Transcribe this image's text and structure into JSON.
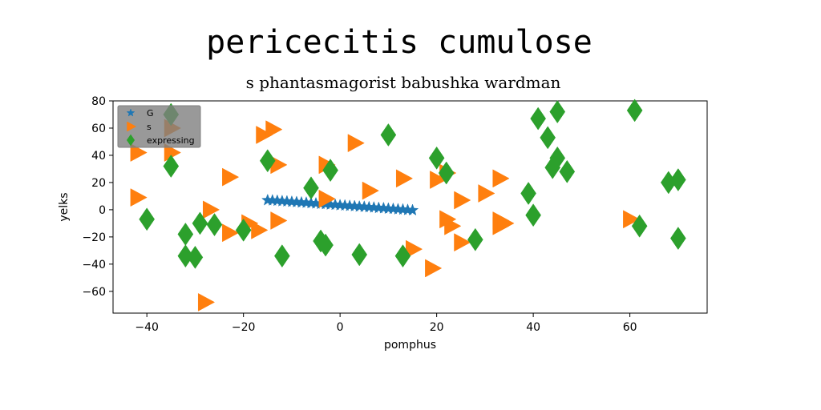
{
  "chart_data": {
    "type": "scatter",
    "title": "pericecitis cumulose",
    "subtitle": "s phantasmagorist babushka wardman",
    "xlabel": "pomphus",
    "ylabel": "yelks",
    "xlim": [
      -47,
      76
    ],
    "ylim": [
      -76,
      80
    ],
    "xticks": [
      -40,
      -20,
      0,
      20,
      40,
      60
    ],
    "yticks": [
      -60,
      -40,
      -20,
      0,
      20,
      40,
      60,
      80
    ],
    "xtick_labels": [
      "−40",
      "−20",
      "0",
      "20",
      "40",
      "60"
    ],
    "ytick_labels": [
      "−60",
      "−40",
      "−20",
      "0",
      "20",
      "40",
      "60",
      "80"
    ],
    "grid": false,
    "legend_position": "top-left",
    "series": [
      {
        "name": "G",
        "marker": "star",
        "color": "#1f77b4",
        "points": [
          [
            -15,
            7
          ],
          [
            -14,
            6.8
          ],
          [
            -13,
            6.6
          ],
          [
            -12,
            6.3
          ],
          [
            -11,
            6.1
          ],
          [
            -10,
            5.8
          ],
          [
            -9,
            5.6
          ],
          [
            -8,
            5.3
          ],
          [
            -7,
            5.1
          ],
          [
            -6,
            4.8
          ],
          [
            -5,
            4.6
          ],
          [
            -4,
            4.3
          ],
          [
            -3,
            4.1
          ],
          [
            -2,
            3.8
          ],
          [
            -1,
            3.6
          ],
          [
            0,
            3.3
          ],
          [
            1,
            3.1
          ],
          [
            2,
            2.8
          ],
          [
            3,
            2.6
          ],
          [
            4,
            2.3
          ],
          [
            5,
            2.1
          ],
          [
            6,
            1.8
          ],
          [
            7,
            1.6
          ],
          [
            8,
            1.3
          ],
          [
            9,
            1.1
          ],
          [
            10,
            0.8
          ],
          [
            11,
            0.6
          ],
          [
            12,
            0.3
          ],
          [
            13,
            0.1
          ],
          [
            14,
            -0.2
          ],
          [
            15,
            -0.4
          ]
        ]
      },
      {
        "name": "s",
        "marker": "triangle-right",
        "color": "#ff7f0e",
        "points": [
          [
            -42,
            42
          ],
          [
            -42,
            9
          ],
          [
            -35,
            42
          ],
          [
            -35,
            60
          ],
          [
            -27,
            0
          ],
          [
            -28,
            -68
          ],
          [
            -23,
            24
          ],
          [
            -23,
            -17
          ],
          [
            -19,
            -10
          ],
          [
            -17,
            -15
          ],
          [
            -16,
            55
          ],
          [
            -14,
            59
          ],
          [
            -13,
            33
          ],
          [
            -13,
            -8
          ],
          [
            -3,
            33
          ],
          [
            -3,
            8
          ],
          [
            3,
            49
          ],
          [
            6,
            14
          ],
          [
            13,
            23
          ],
          [
            15,
            -29
          ],
          [
            19,
            -43
          ],
          [
            20,
            22
          ],
          [
            22,
            -7
          ],
          [
            23,
            -12
          ],
          [
            22,
            27
          ],
          [
            25,
            7
          ],
          [
            25,
            -24
          ],
          [
            30,
            12
          ],
          [
            33,
            23
          ],
          [
            33,
            -8
          ],
          [
            33,
            -12
          ],
          [
            34,
            -10
          ],
          [
            60,
            -7
          ]
        ]
      },
      {
        "name": "expressing",
        "marker": "diamond",
        "color": "#2ca02c",
        "points": [
          [
            -40,
            -7
          ],
          [
            -35,
            70
          ],
          [
            -35,
            32
          ],
          [
            -32,
            -18
          ],
          [
            -32,
            -34
          ],
          [
            -30,
            -35
          ],
          [
            -29,
            -10
          ],
          [
            -26,
            -11
          ],
          [
            -20,
            -15
          ],
          [
            -15,
            36
          ],
          [
            -12,
            -34
          ],
          [
            -6,
            16
          ],
          [
            -4,
            -23
          ],
          [
            -3,
            -26
          ],
          [
            -2,
            29
          ],
          [
            4,
            -33
          ],
          [
            10,
            55
          ],
          [
            13,
            -34
          ],
          [
            20,
            38
          ],
          [
            22,
            27
          ],
          [
            28,
            -22
          ],
          [
            39,
            12
          ],
          [
            40,
            -4
          ],
          [
            41,
            67
          ],
          [
            43,
            53
          ],
          [
            44,
            31
          ],
          [
            45,
            72
          ],
          [
            45,
            38
          ],
          [
            47,
            28
          ],
          [
            61,
            73
          ],
          [
            62,
            -12
          ],
          [
            68,
            20
          ],
          [
            70,
            22
          ],
          [
            70,
            -21
          ]
        ]
      }
    ]
  }
}
